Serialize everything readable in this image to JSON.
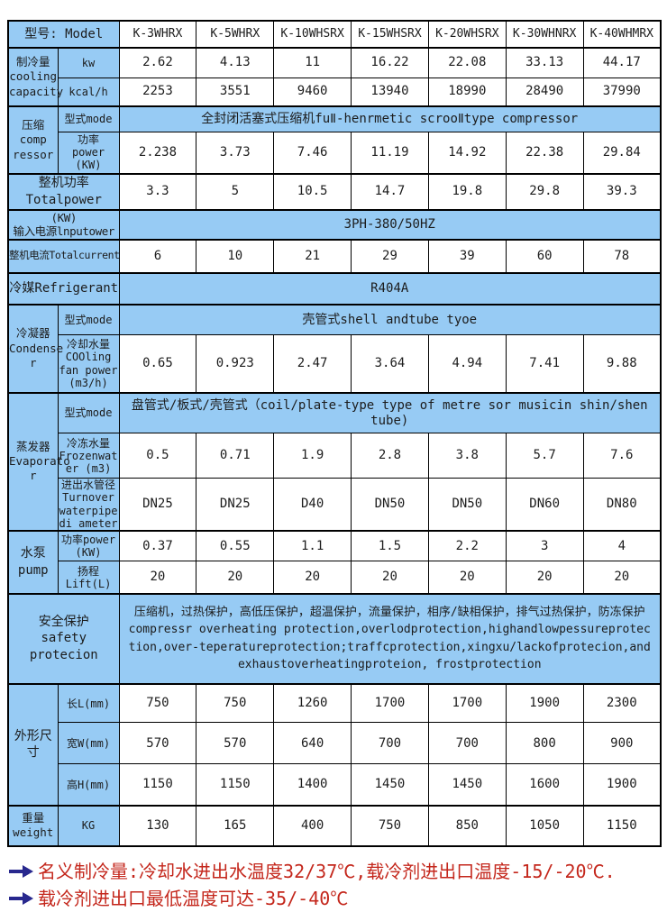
{
  "colors": {
    "cell_blue": "#97cbf4",
    "border_black": "#000000",
    "note_red": "#c4271c",
    "arrow_navy": "#28288e"
  },
  "table": {
    "model_header": "型号: Model",
    "models": [
      "K-3WHRX",
      "K-5WHRX",
      "K-10WHSRX",
      "K-15WHSRX",
      "K-20WHSRX",
      "K-30WHNRX",
      "K-40WHMRX"
    ],
    "cooling": {
      "label": "制冷量\ncooling\ncapacity",
      "kw_label": "kw",
      "kw": [
        "2.62",
        "4.13",
        "11",
        "16.22",
        "22.08",
        "33.13",
        "44.17"
      ],
      "kcal_label": "kcal/h",
      "kcal": [
        "2253",
        "3551",
        "9460",
        "13940",
        "18990",
        "28490",
        "37990"
      ]
    },
    "compressor": {
      "label": "压缩\ncomp\nressor",
      "mode_label": "型式mode",
      "mode_value": "全封闭活塞式压缩机fuⅡ-henrmetic scrooⅡtype compressor",
      "power_label": "功率\npower\n(KW)",
      "power": [
        "2.238",
        "3.73",
        "7.46",
        "11.19",
        "14.92",
        "22.38",
        "29.84"
      ]
    },
    "total_power": {
      "label": "整机功率\nTotalpower",
      "values": [
        "3.3",
        "5",
        "10.5",
        "14.7",
        "19.8",
        "29.8",
        "39.3"
      ]
    },
    "input_power": {
      "label": "(KW)\n输入电源lnputower",
      "value": "3PH-380/50HZ"
    },
    "total_current": {
      "label": "整机电流Totalcurrent(A)",
      "values": [
        "6",
        "10",
        "21",
        "29",
        "39",
        "60",
        "78"
      ]
    },
    "refrigerant": {
      "label": "冷媒Refrigerant",
      "value": "R404A"
    },
    "condenser": {
      "label": "冷凝器\nCondense\nr",
      "mode_label": "型式mode",
      "mode_value": "壳管式shell andtube tyoe",
      "water_label": "冷却水量\nCOOling\nfan power\n(m3/h)",
      "water": [
        "0.65",
        "0.923",
        "2.47",
        "3.64",
        "4.94",
        "7.41",
        "9.88"
      ]
    },
    "evaporator": {
      "label": "蒸发器\nEvaporato\nr",
      "mode_label": "型式mode",
      "mode_value": "盘管式/板式/壳管式（coil/plate-type type of metre sor musicin shin/shen tube)",
      "frozen_label": "冷冻水量\nFrozenwat\ner (m3)",
      "frozen": [
        "0.5",
        "0.71",
        "1.9",
        "2.8",
        "3.8",
        "5.7",
        "7.6"
      ],
      "pipe_label": "进出水管径\nTurnover\nwaterpipe\ndi ameter",
      "pipe": [
        "DN25",
        "DN25",
        "D40",
        "DN50",
        "DN50",
        "DN60",
        "DN80"
      ]
    },
    "pump": {
      "label": "水泵\npump",
      "power_label": "功率power\n(KW)",
      "power": [
        "0.37",
        "0.55",
        "1.1",
        "1.5",
        "2.2",
        "3",
        "4"
      ],
      "lift_label": "扬程\nLift(L)",
      "lift": [
        "20",
        "20",
        "20",
        "20",
        "20",
        "20",
        "20"
      ]
    },
    "safety": {
      "label": "安全保护\nsafety protecion",
      "value": "压缩机，过热保护，高低压保护，超温保护，流量保护，相序/缺相保护，排气过热保护，防冻保护\ncompressr overheating protection,overlodprotection,highandlowpessureprotection,over-teperatureprotection;traffcprotection,xingxu/lackofprotecion,andexhaustoverheatingproteion,    frostprotection"
    },
    "dimensions": {
      "label": "外形尺寸",
      "length_label": "长L(mm)",
      "length": [
        "750",
        "750",
        "1260",
        "1700",
        "1700",
        "1900",
        "2300"
      ],
      "width_label": "宽W(mm)",
      "width": [
        "570",
        "570",
        "640",
        "700",
        "700",
        "800",
        "900"
      ],
      "height_label": "高H(mm)",
      "height": [
        "1150",
        "1150",
        "1400",
        "1450",
        "1450",
        "1600",
        "1900"
      ]
    },
    "weight": {
      "label": "重量\nweight",
      "unit_label": "KG",
      "values": [
        "130",
        "165",
        "400",
        "750",
        "850",
        "1050",
        "1150"
      ]
    }
  },
  "notes": [
    "名义制冷量:冷却水进出水温度32/37℃,载冷剂进出口温度-15/-20℃.",
    "载冷剂进出口最低温度可达-35/-40℃"
  ]
}
